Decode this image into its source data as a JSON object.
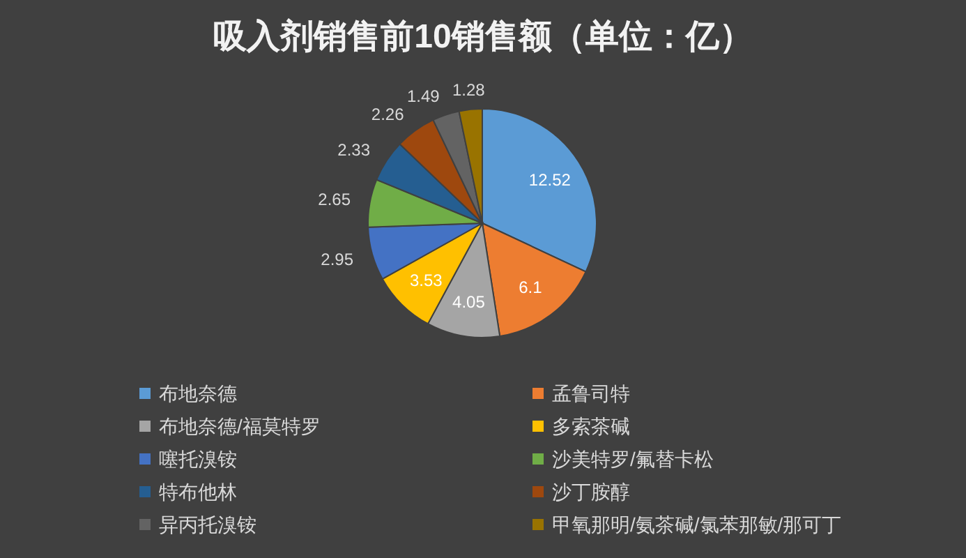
{
  "chart_data": {
    "type": "pie",
    "title": "吸入剂销售前10销售额（单位：亿）",
    "categories": [
      "布地奈德",
      "孟鲁司特",
      "布地奈德/福莫特罗",
      "多索茶碱",
      "噻托溴铵",
      "沙美特罗/氟替卡松",
      "特布他林",
      "沙丁胺醇",
      "异丙托溴铵",
      "甲氧那明/氨茶碱/氯苯那敏/那可丁"
    ],
    "values": [
      12.52,
      6.1,
      4.05,
      3.53,
      2.95,
      2.65,
      2.33,
      2.26,
      1.49,
      1.28
    ],
    "value_labels": [
      "12.52",
      "6.1",
      "4.05",
      "3.53",
      "2.95",
      "2.65",
      "2.33",
      "2.26",
      "1.49",
      "1.28"
    ],
    "colors": [
      "#5b9bd5",
      "#ed7d31",
      "#a5a5a5",
      "#ffc000",
      "#4472c4",
      "#70ad47",
      "#255e91",
      "#9e480e",
      "#636363",
      "#997300"
    ],
    "legend": "bottom"
  }
}
